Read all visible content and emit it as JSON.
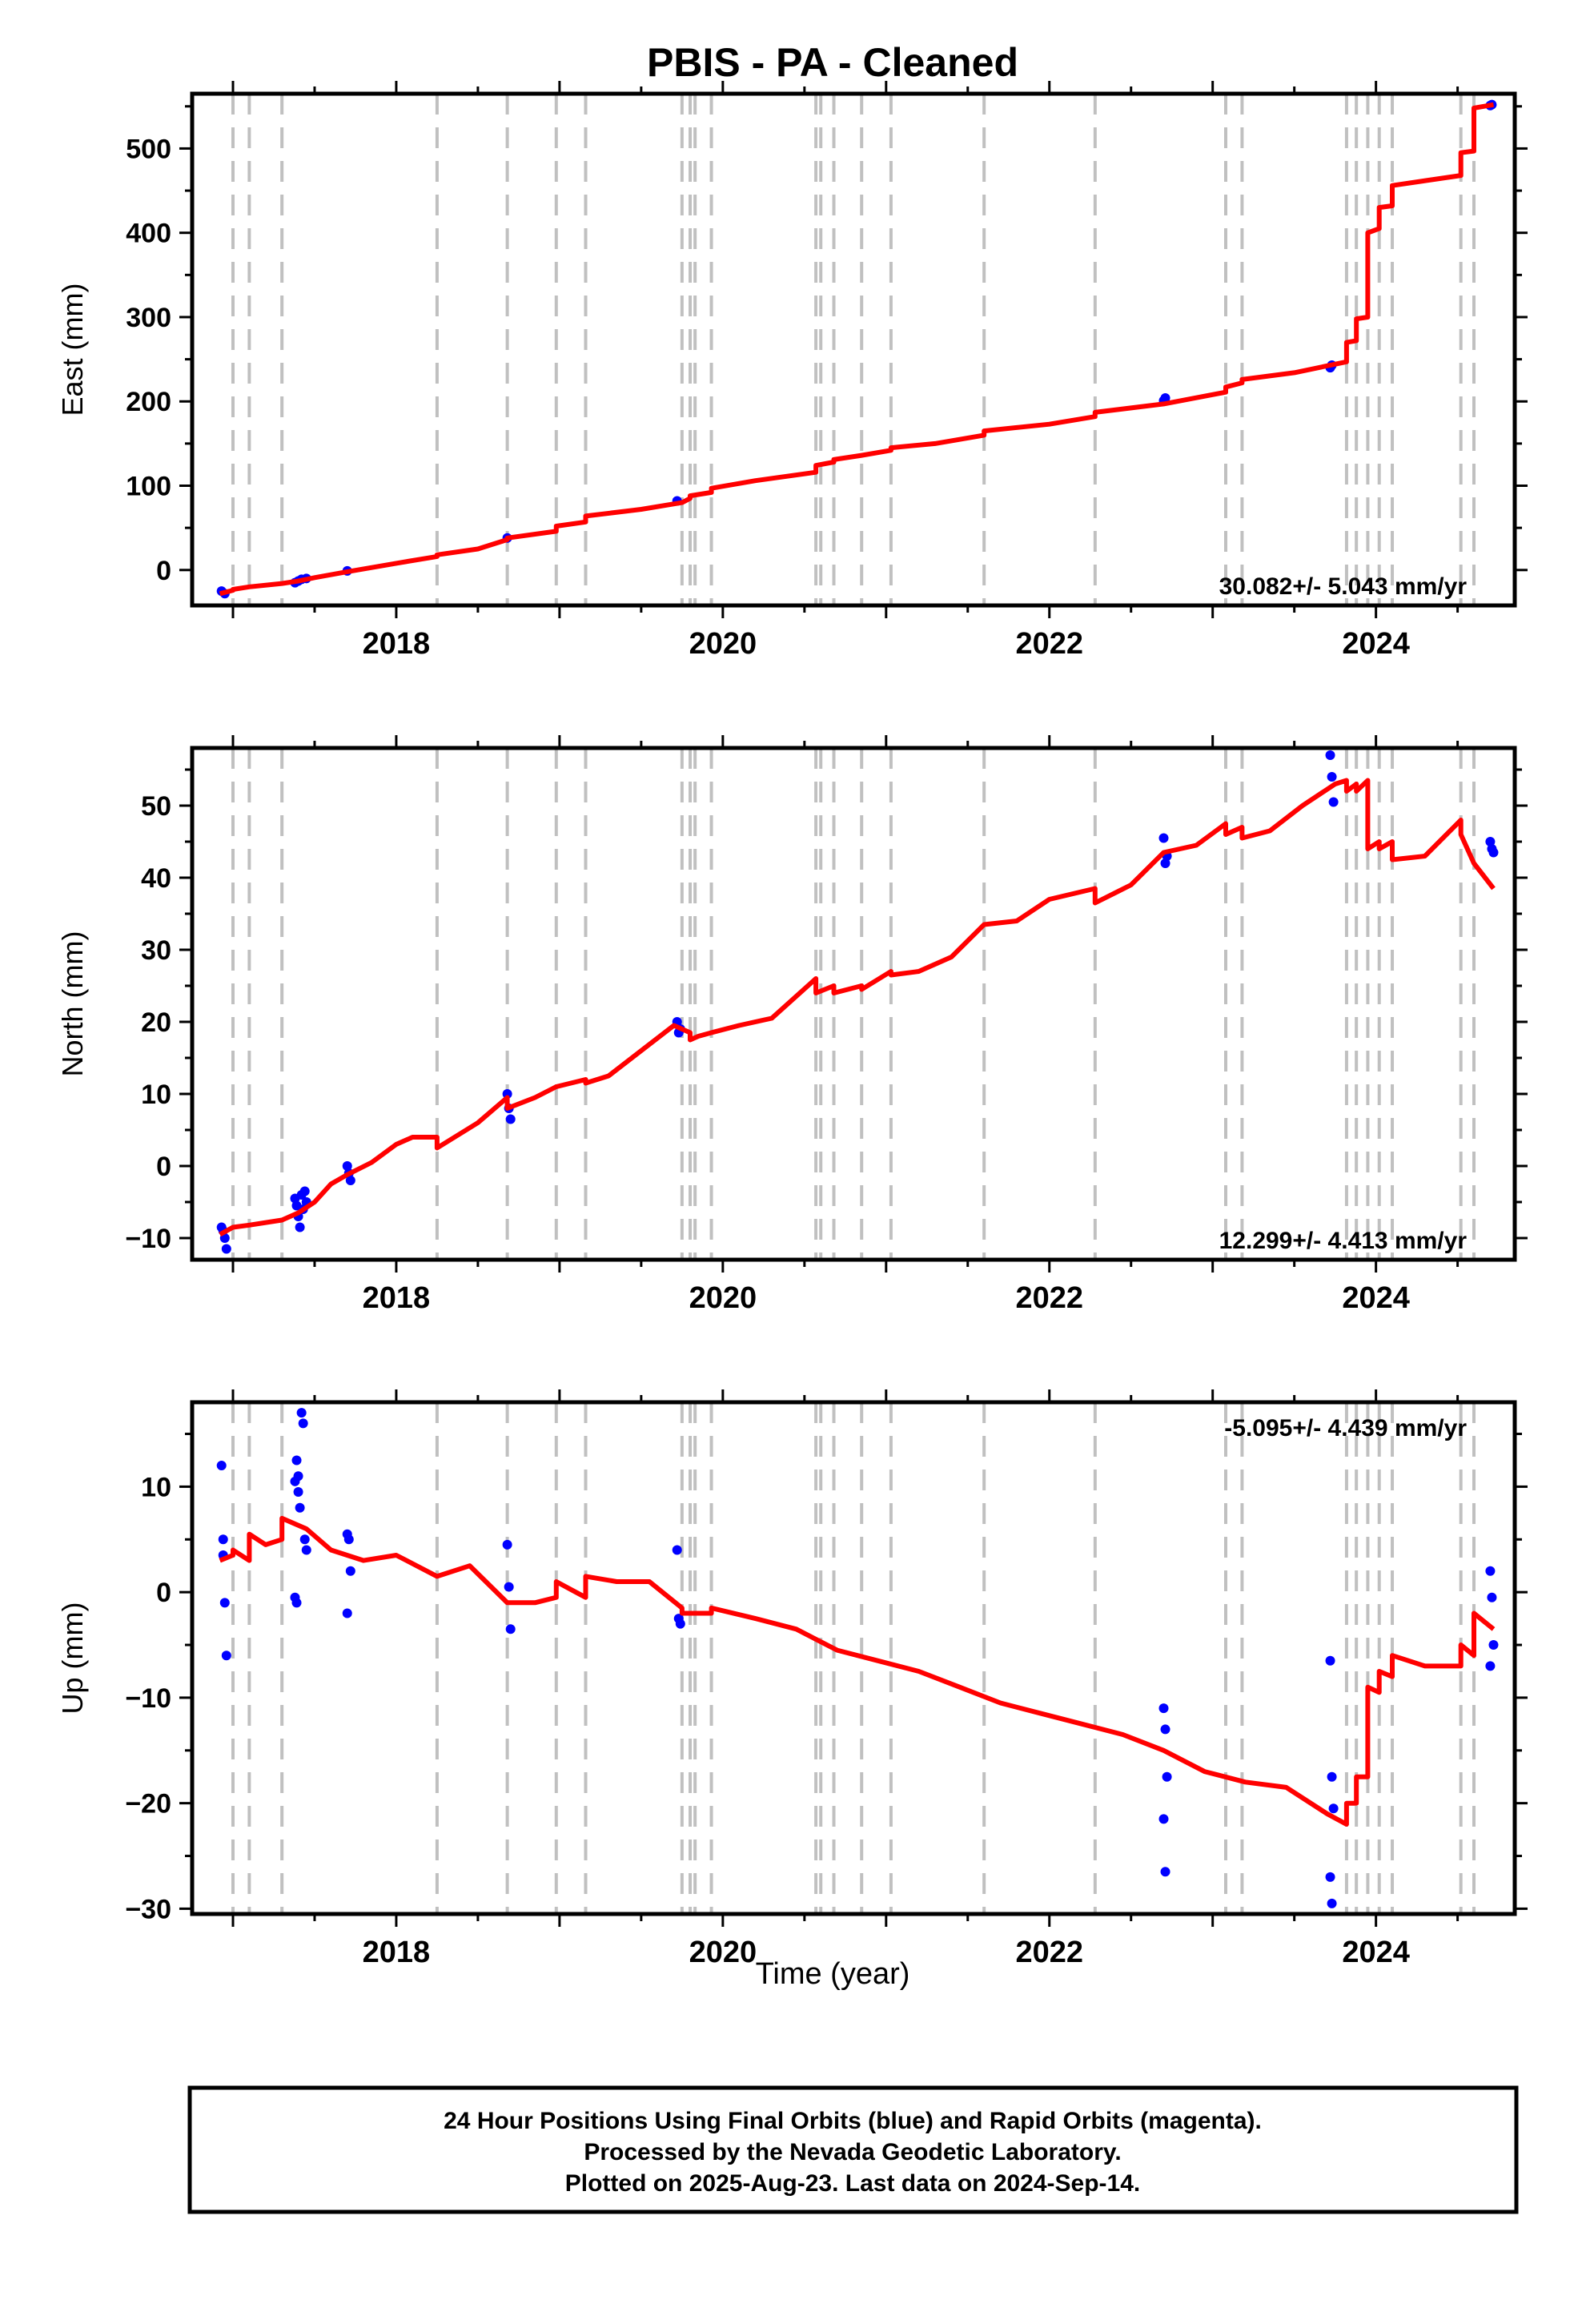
{
  "title": "PBIS  - PA - Cleaned",
  "xlabel": "Time (year)",
  "caption": [
    "24 Hour Positions Using Final Orbits (blue) and Rapid Orbits (magenta).",
    "Processed by the Nevada Geodetic Laboratory.",
    "Plotted on 2025-Aug-23. Last data on 2024-Sep-14."
  ],
  "colors": {
    "model": "#ff0000",
    "final_orbits": "#0000ff",
    "steps": "#c0c0c0"
  },
  "chart_data": [
    {
      "type": "line",
      "name": "east",
      "ylabel": "East (mm)",
      "rate_label": "30.082+/- 5.043 mm/yr",
      "xlim": [
        2016.75,
        2024.85
      ],
      "ylim": [
        -42,
        565
      ],
      "yticks": [
        0,
        100,
        200,
        300,
        400,
        500
      ],
      "xticks": [
        2018,
        2020,
        2022,
        2024
      ],
      "step_epochs": [
        2017.0,
        2017.1,
        2017.3,
        2018.25,
        2018.68,
        2018.98,
        2019.16,
        2019.75,
        2019.8,
        2019.83,
        2019.93,
        2020.57,
        2020.6,
        2020.68,
        2020.85,
        2021.03,
        2021.6,
        2022.28,
        2023.08,
        2023.18,
        2023.82,
        2023.88,
        2023.95,
        2024.02,
        2024.1,
        2024.52,
        2024.6
      ],
      "model": {
        "x": [
          2016.92,
          2017.0,
          2017.0,
          2017.1,
          2017.3,
          2017.4,
          2017.5,
          2017.7,
          2018.0,
          2018.25,
          2018.25,
          2018.5,
          2018.68,
          2018.68,
          2018.98,
          2018.98,
          2019.16,
          2019.16,
          2019.5,
          2019.75,
          2019.8,
          2019.8,
          2019.93,
          2019.93,
          2020.2,
          2020.57,
          2020.57,
          2020.68,
          2020.68,
          2020.85,
          2021.03,
          2021.03,
          2021.3,
          2021.6,
          2021.6,
          2022.0,
          2022.28,
          2022.28,
          2022.7,
          2023.08,
          2023.08,
          2023.18,
          2023.18,
          2023.5,
          2023.82,
          2023.82,
          2023.88,
          2023.88,
          2023.95,
          2023.95,
          2024.02,
          2024.02,
          2024.1,
          2024.1,
          2024.52,
          2024.52,
          2024.6,
          2024.6,
          2024.72
        ],
        "y": [
          -28,
          -24,
          -23,
          -20,
          -16,
          -13,
          -9,
          -2,
          8,
          16,
          18,
          25,
          36,
          38,
          46,
          52,
          57,
          64,
          72,
          80,
          85,
          88,
          92,
          97,
          106,
          116,
          124,
          128,
          131,
          136,
          142,
          145,
          150,
          160,
          165,
          173,
          182,
          187,
          197,
          211,
          217,
          222,
          226,
          234,
          247,
          270,
          272,
          298,
          300,
          400,
          405,
          430,
          432,
          456,
          468,
          495,
          497,
          548,
          552
        ]
      },
      "points": {
        "x": [
          2016.93,
          2016.95,
          2017.38,
          2017.4,
          2017.42,
          2017.45,
          2017.7,
          2018.68,
          2019.72,
          2022.7,
          2022.71,
          2023.72,
          2023.73,
          2024.7,
          2024.71
        ],
        "y": [
          -25,
          -28,
          -15,
          -13,
          -11,
          -10,
          -1,
          38,
          82,
          201,
          204,
          240,
          243,
          551,
          552
        ]
      }
    },
    {
      "type": "line",
      "name": "north",
      "ylabel": "North (mm)",
      "rate_label": "12.299+/- 4.413 mm/yr",
      "xlim": [
        2016.75,
        2024.85
      ],
      "ylim": [
        -13,
        58
      ],
      "yticks": [
        -10,
        0,
        10,
        20,
        30,
        40,
        50
      ],
      "xticks": [
        2018,
        2020,
        2022,
        2024
      ],
      "step_epochs": [
        2017.0,
        2017.1,
        2017.3,
        2018.25,
        2018.68,
        2018.98,
        2019.16,
        2019.75,
        2019.8,
        2019.83,
        2019.93,
        2020.57,
        2020.6,
        2020.68,
        2020.85,
        2021.03,
        2021.6,
        2022.28,
        2023.08,
        2023.18,
        2023.82,
        2023.88,
        2023.95,
        2024.02,
        2024.1,
        2024.52,
        2024.6
      ],
      "model": {
        "x": [
          2016.92,
          2017.0,
          2017.1,
          2017.3,
          2017.4,
          2017.5,
          2017.6,
          2017.7,
          2017.85,
          2018.0,
          2018.1,
          2018.25,
          2018.25,
          2018.5,
          2018.68,
          2018.68,
          2018.85,
          2018.98,
          2019.16,
          2019.16,
          2019.3,
          2019.5,
          2019.7,
          2019.8,
          2019.8,
          2019.85,
          2019.93,
          2020.1,
          2020.3,
          2020.57,
          2020.57,
          2020.68,
          2020.68,
          2020.85,
          2020.85,
          2021.03,
          2021.03,
          2021.2,
          2021.4,
          2021.6,
          2021.8,
          2022.0,
          2022.28,
          2022.28,
          2022.5,
          2022.7,
          2022.9,
          2023.08,
          2023.08,
          2023.18,
          2023.18,
          2023.35,
          2023.55,
          2023.75,
          2023.82,
          2023.82,
          2023.88,
          2023.88,
          2023.95,
          2023.95,
          2024.02,
          2024.02,
          2024.1,
          2024.1,
          2024.3,
          2024.52,
          2024.52,
          2024.6,
          2024.72
        ],
        "y": [
          -9.5,
          -8.5,
          -8.2,
          -7.5,
          -6.5,
          -5.0,
          -2.5,
          -1.2,
          0.5,
          3.0,
          4.0,
          4.0,
          2.5,
          6.0,
          9.5,
          8.0,
          9.5,
          11.0,
          12.0,
          11.5,
          12.5,
          16.0,
          19.5,
          18.5,
          17.5,
          18.0,
          18.5,
          19.5,
          20.5,
          26.0,
          24.0,
          25.0,
          24.0,
          25.0,
          24.5,
          27.0,
          26.5,
          27.0,
          29.0,
          33.5,
          34.0,
          37.0,
          38.5,
          36.5,
          39.0,
          43.5,
          44.5,
          47.5,
          46.0,
          47.0,
          45.5,
          46.5,
          50.0,
          53.0,
          53.5,
          52.0,
          53.0,
          52.0,
          53.5,
          44.0,
          45.0,
          44.0,
          45.0,
          42.5,
          43.0,
          48.0,
          46.0,
          42.0,
          38.5
        ]
      },
      "points": {
        "x": [
          2016.93,
          2016.94,
          2016.95,
          2016.96,
          2017.38,
          2017.39,
          2017.4,
          2017.41,
          2017.42,
          2017.43,
          2017.44,
          2017.45,
          2017.7,
          2017.71,
          2017.72,
          2018.68,
          2018.69,
          2018.7,
          2019.72,
          2019.73,
          2019.74,
          2022.7,
          2022.71,
          2022.72,
          2023.72,
          2023.73,
          2023.74,
          2024.7,
          2024.71,
          2024.72
        ],
        "y": [
          -8.5,
          -9.0,
          -10.0,
          -11.5,
          -4.5,
          -5.5,
          -7.0,
          -8.5,
          -4.0,
          -6.0,
          -3.5,
          -5.0,
          0.0,
          -1.0,
          -2.0,
          10.0,
          8.0,
          6.5,
          20.0,
          18.5,
          19.0,
          45.5,
          42.0,
          43.0,
          57.0,
          54.0,
          50.5,
          45.0,
          44.0,
          43.5
        ]
      }
    },
    {
      "type": "line",
      "name": "up",
      "ylabel": "Up (mm)",
      "rate_label": "-5.095+/- 4.439 mm/yr",
      "xlim": [
        2016.75,
        2024.85
      ],
      "ylim": [
        -30.5,
        18
      ],
      "yticks": [
        -30,
        -20,
        -10,
        0,
        10
      ],
      "xticks": [
        2018,
        2020,
        2022,
        2024
      ],
      "step_epochs": [
        2017.0,
        2017.1,
        2017.3,
        2018.25,
        2018.68,
        2018.98,
        2019.16,
        2019.75,
        2019.8,
        2019.83,
        2019.93,
        2020.57,
        2020.6,
        2020.68,
        2020.85,
        2021.03,
        2021.6,
        2022.28,
        2023.08,
        2023.18,
        2023.82,
        2023.88,
        2023.95,
        2024.02,
        2024.1,
        2024.52,
        2024.6
      ],
      "model": {
        "x": [
          2016.92,
          2017.0,
          2017.0,
          2017.1,
          2017.1,
          2017.2,
          2017.3,
          2017.3,
          2017.45,
          2017.6,
          2017.8,
          2018.0,
          2018.25,
          2018.45,
          2018.68,
          2018.85,
          2018.98,
          2018.98,
          2019.1,
          2019.16,
          2019.16,
          2019.35,
          2019.55,
          2019.75,
          2019.75,
          2019.93,
          2019.93,
          2020.2,
          2020.45,
          2020.7,
          2020.95,
          2021.2,
          2021.45,
          2021.7,
          2021.95,
          2022.2,
          2022.45,
          2022.7,
          2022.95,
          2023.2,
          2023.45,
          2023.7,
          2023.82,
          2023.82,
          2023.88,
          2023.88,
          2023.95,
          2023.95,
          2024.02,
          2024.02,
          2024.1,
          2024.1,
          2024.3,
          2024.52,
          2024.52,
          2024.6,
          2024.6,
          2024.72
        ],
        "y": [
          3.0,
          3.5,
          4.0,
          3.0,
          5.5,
          4.5,
          5.0,
          7.0,
          6.0,
          4.0,
          3.0,
          3.5,
          1.5,
          2.5,
          -1.0,
          -1.0,
          -0.5,
          1.0,
          0.0,
          -0.5,
          1.5,
          1.0,
          1.0,
          -1.5,
          -2.0,
          -2.0,
          -1.5,
          -2.5,
          -3.5,
          -5.5,
          -6.5,
          -7.5,
          -9.0,
          -10.5,
          -11.5,
          -12.5,
          -13.5,
          -15.0,
          -17.0,
          -18.0,
          -18.5,
          -21.0,
          -22.0,
          -20.0,
          -20.0,
          -17.5,
          -17.5,
          -9.0,
          -9.5,
          -7.5,
          -8.0,
          -6.0,
          -7.0,
          -7.0,
          -5.0,
          -6.0,
          -2.0,
          -3.5
        ]
      },
      "points": {
        "x": [
          2016.93,
          2016.94,
          2016.94,
          2016.95,
          2016.96,
          2017.38,
          2017.39,
          2017.4,
          2017.4,
          2017.41,
          2017.42,
          2017.43,
          2017.44,
          2017.45,
          2017.38,
          2017.39,
          2017.7,
          2017.71,
          2017.72,
          2017.7,
          2018.68,
          2018.69,
          2018.7,
          2019.72,
          2019.73,
          2019.74,
          2022.7,
          2022.71,
          2022.72,
          2022.7,
          2022.71,
          2023.72,
          2023.73,
          2023.74,
          2023.72,
          2023.73,
          2024.7,
          2024.71,
          2024.72,
          2024.7
        ],
        "y": [
          12.0,
          5.0,
          3.5,
          -1.0,
          -6.0,
          10.5,
          12.5,
          11.0,
          9.5,
          8.0,
          17.0,
          16.0,
          5.0,
          4.0,
          -0.5,
          -1.0,
          5.5,
          5.0,
          2.0,
          -2.0,
          4.5,
          0.5,
          -3.5,
          4.0,
          -2.5,
          -3.0,
          -11.0,
          -13.0,
          -17.5,
          -21.5,
          -26.5,
          -6.5,
          -17.5,
          -20.5,
          -27.0,
          -29.5,
          2.0,
          -0.5,
          -5.0,
          -7.0
        ]
      }
    }
  ]
}
